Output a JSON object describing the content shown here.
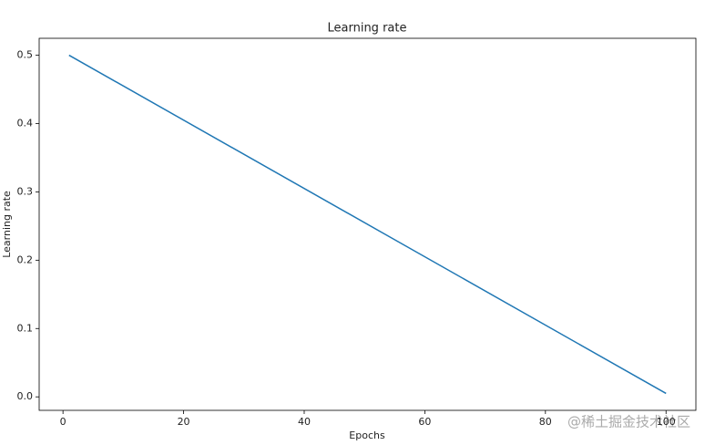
{
  "chart_data": {
    "type": "line",
    "title": "Learning rate",
    "x_label": "Epochs",
    "y_label": "Learning rate",
    "x": [
      1,
      53,
      100
    ],
    "series": [
      {
        "name": "Learning rate",
        "color": "#1f77b4",
        "values": [
          0.5,
          0.24,
          0.005
        ]
      }
    ],
    "xlim": [
      -3.95,
      104.95
    ],
    "xticks": [
      0,
      20,
      40,
      60,
      80,
      100
    ],
    "ylim": [
      -0.01975,
      0.52475
    ],
    "yticks": [
      {
        "value": 0,
        "label": "0.0"
      },
      0.1,
      0.2,
      0.3,
      0.4,
      0.5
    ],
    "grid": false,
    "watermark": "@稀土掘金技术社区"
  }
}
